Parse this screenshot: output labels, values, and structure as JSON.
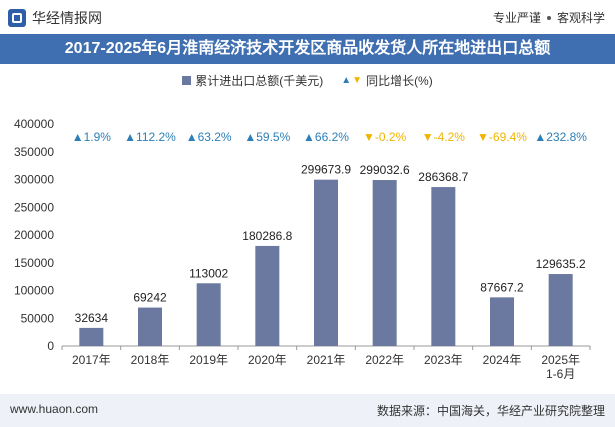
{
  "header": {
    "brand": "华经情报网",
    "slogan_left": "专业严谨",
    "slogan_right": "客观科学",
    "title": "2017-2025年6月淮南经济技术开发区商品收发货人所在地进出口总额"
  },
  "legend": {
    "bar_label": "累计进出口总额(千美元)",
    "growth_label": "同比增长(%)"
  },
  "colors": {
    "bar": "#6b78a0",
    "title_bg": "#3f6fb0",
    "up": "#2c7fb8",
    "down": "#f0b400"
  },
  "chart_data": {
    "type": "bar",
    "categories": [
      "2017年",
      "2018年",
      "2019年",
      "2020年",
      "2021年",
      "2022年",
      "2023年",
      "2024年",
      "2025年\n1-6月"
    ],
    "series": [
      {
        "name": "累计进出口总额(千美元)",
        "values": [
          32634,
          69242,
          113002,
          180286.8,
          299673.9,
          299032.6,
          286368.7,
          87667.2,
          129635.2
        ],
        "labels": [
          "32634",
          "69242",
          "113002",
          "180286.8",
          "299673.9",
          "299032.6",
          "286368.7",
          "87667.2",
          "129635.2"
        ]
      },
      {
        "name": "同比增长(%)",
        "values": [
          1.9,
          112.2,
          63.2,
          59.5,
          66.2,
          -0.2,
          -4.2,
          -69.4,
          232.8
        ],
        "labels": [
          "1.9%",
          "112.2%",
          "63.2%",
          "59.5%",
          "66.2%",
          "-0.2%",
          "-4.2%",
          "-69.4%",
          "232.8%"
        ]
      }
    ],
    "ylim": [
      0,
      400000
    ],
    "yticks": [
      0,
      50000,
      100000,
      150000,
      200000,
      250000,
      300000,
      350000,
      400000
    ],
    "grid": false,
    "legend_position": "top"
  },
  "footer": {
    "site": "www.huaon.com",
    "source": "数据来源：中国海关，华经产业研究院整理"
  }
}
